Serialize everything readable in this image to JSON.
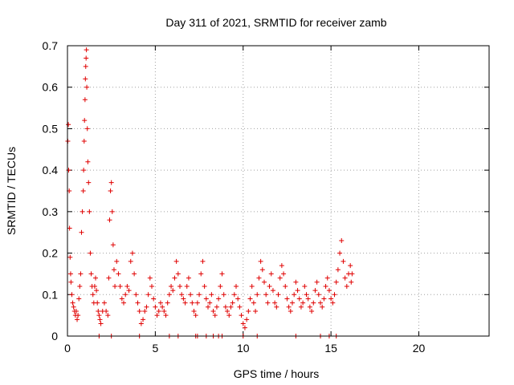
{
  "chart_data": {
    "type": "scatter",
    "title": "Day 311 of 2021, SRMTID for receiver zamb",
    "xlabel": "GPS time / hours",
    "ylabel": "SRMTID / TECUs",
    "xlim": [
      0,
      24
    ],
    "ylim": [
      0,
      0.7
    ],
    "xticks": [
      0,
      5,
      10,
      15,
      20
    ],
    "yticks": [
      0,
      0.1,
      0.2,
      0.3,
      0.4,
      0.5,
      0.6,
      0.7
    ],
    "xtick_labels": [
      "0",
      "5",
      "10",
      "15",
      "20"
    ],
    "ytick_labels": [
      "0",
      "0.1",
      "0.2",
      "0.3",
      "0.4",
      "0.5",
      "0.6",
      "0.7"
    ],
    "grid": true,
    "legend": "none",
    "marker": "+",
    "color": "#e00000",
    "series": [
      {
        "name": "SRMTID",
        "points": [
          [
            0.02,
            0.47
          ],
          [
            0.05,
            0.51
          ],
          [
            0.07,
            0.4
          ],
          [
            0.1,
            0.35
          ],
          [
            0.12,
            0.26
          ],
          [
            0.15,
            0.19
          ],
          [
            0.18,
            0.15
          ],
          [
            0.2,
            0.13
          ],
          [
            0.25,
            0.1
          ],
          [
            0.3,
            0.08
          ],
          [
            0.35,
            0.07
          ],
          [
            0.4,
            0.06
          ],
          [
            0.45,
            0.05
          ],
          [
            0.5,
            0.06
          ],
          [
            0.55,
            0.04
          ],
          [
            0.6,
            0.05
          ],
          [
            0.65,
            0.09
          ],
          [
            0.7,
            0.12
          ],
          [
            0.75,
            0.15
          ],
          [
            0.8,
            0.25
          ],
          [
            0.85,
            0.3
          ],
          [
            0.9,
            0.35
          ],
          [
            0.92,
            0.4
          ],
          [
            0.95,
            0.47
          ],
          [
            0.97,
            0.52
          ],
          [
            1.0,
            0.57
          ],
          [
            1.02,
            0.62
          ],
          [
            1.04,
            0.65
          ],
          [
            1.06,
            0.67
          ],
          [
            1.08,
            0.69
          ],
          [
            1.1,
            0.6
          ],
          [
            1.13,
            0.5
          ],
          [
            1.16,
            0.42
          ],
          [
            1.2,
            0.37
          ],
          [
            1.25,
            0.3
          ],
          [
            1.3,
            0.2
          ],
          [
            1.35,
            0.15
          ],
          [
            1.4,
            0.12
          ],
          [
            1.45,
            0.1
          ],
          [
            1.5,
            0.08
          ],
          [
            1.55,
            0.12
          ],
          [
            1.6,
            0.14
          ],
          [
            1.65,
            0.11
          ],
          [
            1.7,
            0.08
          ],
          [
            1.75,
            0.06
          ],
          [
            1.8,
            0.05
          ],
          [
            1.85,
            0.04
          ],
          [
            1.9,
            0.03
          ],
          [
            2.0,
            0.06
          ],
          [
            2.1,
            0.08
          ],
          [
            2.2,
            0.06
          ],
          [
            2.3,
            0.05
          ],
          [
            2.35,
            0.14
          ],
          [
            2.4,
            0.28
          ],
          [
            2.45,
            0.35
          ],
          [
            2.5,
            0.37
          ],
          [
            2.55,
            0.3
          ],
          [
            2.6,
            0.22
          ],
          [
            2.65,
            0.16
          ],
          [
            2.7,
            0.12
          ],
          [
            2.8,
            0.18
          ],
          [
            2.9,
            0.15
          ],
          [
            3.0,
            0.12
          ],
          [
            3.1,
            0.09
          ],
          [
            3.2,
            0.08
          ],
          [
            3.3,
            0.1
          ],
          [
            3.4,
            0.12
          ],
          [
            3.5,
            0.11
          ],
          [
            3.6,
            0.18
          ],
          [
            3.7,
            0.2
          ],
          [
            3.8,
            0.15
          ],
          [
            3.9,
            0.1
          ],
          [
            4.0,
            0.08
          ],
          [
            4.1,
            0.06
          ],
          [
            4.2,
            0.03
          ],
          [
            4.3,
            0.04
          ],
          [
            4.4,
            0.06
          ],
          [
            4.5,
            0.07
          ],
          [
            4.6,
            0.1
          ],
          [
            4.7,
            0.14
          ],
          [
            4.8,
            0.12
          ],
          [
            4.9,
            0.09
          ],
          [
            5.0,
            0.07
          ],
          [
            5.1,
            0.05
          ],
          [
            5.2,
            0.06
          ],
          [
            5.3,
            0.08
          ],
          [
            5.4,
            0.07
          ],
          [
            5.5,
            0.06
          ],
          [
            5.6,
            0.05
          ],
          [
            5.7,
            0.08
          ],
          [
            5.8,
            0.1
          ],
          [
            5.9,
            0.12
          ],
          [
            6.0,
            0.11
          ],
          [
            6.1,
            0.14
          ],
          [
            6.2,
            0.18
          ],
          [
            6.3,
            0.15
          ],
          [
            6.4,
            0.12
          ],
          [
            6.5,
            0.1
          ],
          [
            6.6,
            0.09
          ],
          [
            6.7,
            0.08
          ],
          [
            6.8,
            0.12
          ],
          [
            6.9,
            0.14
          ],
          [
            7.0,
            0.1
          ],
          [
            7.1,
            0.08
          ],
          [
            7.2,
            0.06
          ],
          [
            7.3,
            0.05
          ],
          [
            7.4,
            0.08
          ],
          [
            7.5,
            0.1
          ],
          [
            7.6,
            0.15
          ],
          [
            7.7,
            0.18
          ],
          [
            7.8,
            0.12
          ],
          [
            7.9,
            0.09
          ],
          [
            8.0,
            0.07
          ],
          [
            8.1,
            0.08
          ],
          [
            8.2,
            0.1
          ],
          [
            8.3,
            0.06
          ],
          [
            8.4,
            0.05
          ],
          [
            8.5,
            0.07
          ],
          [
            8.6,
            0.09
          ],
          [
            8.7,
            0.12
          ],
          [
            8.8,
            0.15
          ],
          [
            8.9,
            0.1
          ],
          [
            9.0,
            0.07
          ],
          [
            9.1,
            0.06
          ],
          [
            9.2,
            0.05
          ],
          [
            9.3,
            0.07
          ],
          [
            9.4,
            0.08
          ],
          [
            9.5,
            0.1
          ],
          [
            9.6,
            0.12
          ],
          [
            9.7,
            0.09
          ],
          [
            9.8,
            0.07
          ],
          [
            9.9,
            0.05
          ],
          [
            10.0,
            0.03
          ],
          [
            10.1,
            0.02
          ],
          [
            10.2,
            0.04
          ],
          [
            10.3,
            0.06
          ],
          [
            10.4,
            0.09
          ],
          [
            10.5,
            0.12
          ],
          [
            10.6,
            0.08
          ],
          [
            10.7,
            0.06
          ],
          [
            10.8,
            0.1
          ],
          [
            10.9,
            0.14
          ],
          [
            11.0,
            0.18
          ],
          [
            11.1,
            0.16
          ],
          [
            11.2,
            0.13
          ],
          [
            11.3,
            0.1
          ],
          [
            11.4,
            0.08
          ],
          [
            11.5,
            0.12
          ],
          [
            11.6,
            0.15
          ],
          [
            11.7,
            0.11
          ],
          [
            11.8,
            0.08
          ],
          [
            11.9,
            0.07
          ],
          [
            12.0,
            0.1
          ],
          [
            12.1,
            0.14
          ],
          [
            12.2,
            0.17
          ],
          [
            12.3,
            0.15
          ],
          [
            12.4,
            0.12
          ],
          [
            12.5,
            0.09
          ],
          [
            12.6,
            0.07
          ],
          [
            12.7,
            0.06
          ],
          [
            12.8,
            0.08
          ],
          [
            12.9,
            0.1
          ],
          [
            13.0,
            0.13
          ],
          [
            13.1,
            0.11
          ],
          [
            13.2,
            0.09
          ],
          [
            13.3,
            0.07
          ],
          [
            13.4,
            0.08
          ],
          [
            13.5,
            0.12
          ],
          [
            13.6,
            0.1
          ],
          [
            13.7,
            0.09
          ],
          [
            13.8,
            0.07
          ],
          [
            13.9,
            0.06
          ],
          [
            14.0,
            0.08
          ],
          [
            14.1,
            0.11
          ],
          [
            14.2,
            0.13
          ],
          [
            14.3,
            0.1
          ],
          [
            14.4,
            0.08
          ],
          [
            14.5,
            0.07
          ],
          [
            14.6,
            0.09
          ],
          [
            14.7,
            0.12
          ],
          [
            14.8,
            0.14
          ],
          [
            14.9,
            0.11
          ],
          [
            15.0,
            0.09
          ],
          [
            15.1,
            0.08
          ],
          [
            15.2,
            0.1
          ],
          [
            15.3,
            0.13
          ],
          [
            15.4,
            0.16
          ],
          [
            15.5,
            0.2
          ],
          [
            15.6,
            0.23
          ],
          [
            15.7,
            0.18
          ],
          [
            15.8,
            0.14
          ],
          [
            15.9,
            0.12
          ],
          [
            16.0,
            0.15
          ],
          [
            16.1,
            0.17
          ],
          [
            16.15,
            0.13
          ],
          [
            16.2,
            0.15
          ],
          [
            1.8,
            0.0
          ],
          [
            2.5,
            0.0
          ],
          [
            4.1,
            0.0
          ],
          [
            5.8,
            0.0
          ],
          [
            6.3,
            0.0
          ],
          [
            7.3,
            0.0
          ],
          [
            7.4,
            0.0
          ],
          [
            7.9,
            0.0
          ],
          [
            8.3,
            0.0
          ],
          [
            8.6,
            0.0
          ],
          [
            8.8,
            0.0
          ],
          [
            10.0,
            0.0
          ],
          [
            10.8,
            0.0
          ],
          [
            13.0,
            0.0
          ],
          [
            14.4,
            0.0
          ],
          [
            14.9,
            0.0
          ],
          [
            15.3,
            0.0
          ]
        ]
      }
    ]
  }
}
